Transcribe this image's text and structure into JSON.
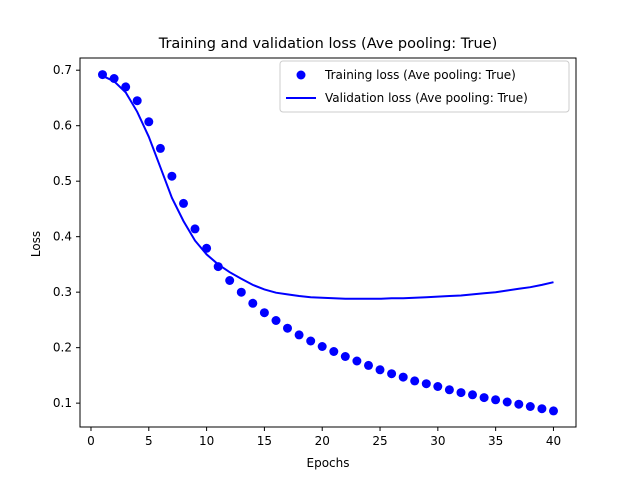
{
  "chart_data": {
    "type": "line",
    "title": "Training and validation loss (Ave pooling: True)",
    "xlabel": "Epochs",
    "ylabel": "Loss",
    "xlim": [
      -0.95,
      41.95
    ],
    "ylim": [
      0.057,
      0.722
    ],
    "xticks": [
      0,
      5,
      10,
      15,
      20,
      25,
      30,
      35,
      40
    ],
    "yticks": [
      0.1,
      0.2,
      0.3,
      0.4,
      0.5,
      0.6,
      0.7
    ],
    "grid": false,
    "legend_position": "top-right",
    "series": [
      {
        "name": "Training loss (Ave pooling: True)",
        "style": "markers",
        "color": "#0000ff",
        "x": [
          1,
          2,
          3,
          4,
          5,
          6,
          7,
          8,
          9,
          10,
          11,
          12,
          13,
          14,
          15,
          16,
          17,
          18,
          19,
          20,
          21,
          22,
          23,
          24,
          25,
          26,
          27,
          28,
          29,
          30,
          31,
          32,
          33,
          34,
          35,
          36,
          37,
          38,
          39,
          40
        ],
        "values": [
          0.692,
          0.685,
          0.67,
          0.645,
          0.607,
          0.559,
          0.509,
          0.46,
          0.414,
          0.379,
          0.346,
          0.321,
          0.3,
          0.28,
          0.263,
          0.249,
          0.235,
          0.223,
          0.212,
          0.202,
          0.193,
          0.184,
          0.176,
          0.168,
          0.16,
          0.153,
          0.147,
          0.14,
          0.135,
          0.13,
          0.124,
          0.119,
          0.115,
          0.11,
          0.106,
          0.102,
          0.098,
          0.094,
          0.09,
          0.086
        ]
      },
      {
        "name": "Validation loss (Ave pooling: True)",
        "style": "line",
        "color": "#0000ff",
        "x": [
          1,
          2,
          3,
          4,
          5,
          6,
          7,
          8,
          9,
          10,
          11,
          12,
          13,
          14,
          15,
          16,
          17,
          18,
          19,
          20,
          21,
          22,
          23,
          24,
          25,
          26,
          27,
          28,
          29,
          30,
          31,
          32,
          33,
          34,
          35,
          36,
          37,
          38,
          39,
          40
        ],
        "values": [
          0.69,
          0.68,
          0.66,
          0.625,
          0.58,
          0.525,
          0.47,
          0.428,
          0.393,
          0.368,
          0.35,
          0.336,
          0.324,
          0.313,
          0.305,
          0.299,
          0.296,
          0.293,
          0.291,
          0.29,
          0.289,
          0.288,
          0.288,
          0.288,
          0.288,
          0.289,
          0.289,
          0.29,
          0.291,
          0.292,
          0.293,
          0.294,
          0.296,
          0.298,
          0.3,
          0.303,
          0.306,
          0.309,
          0.313,
          0.318
        ]
      }
    ]
  }
}
